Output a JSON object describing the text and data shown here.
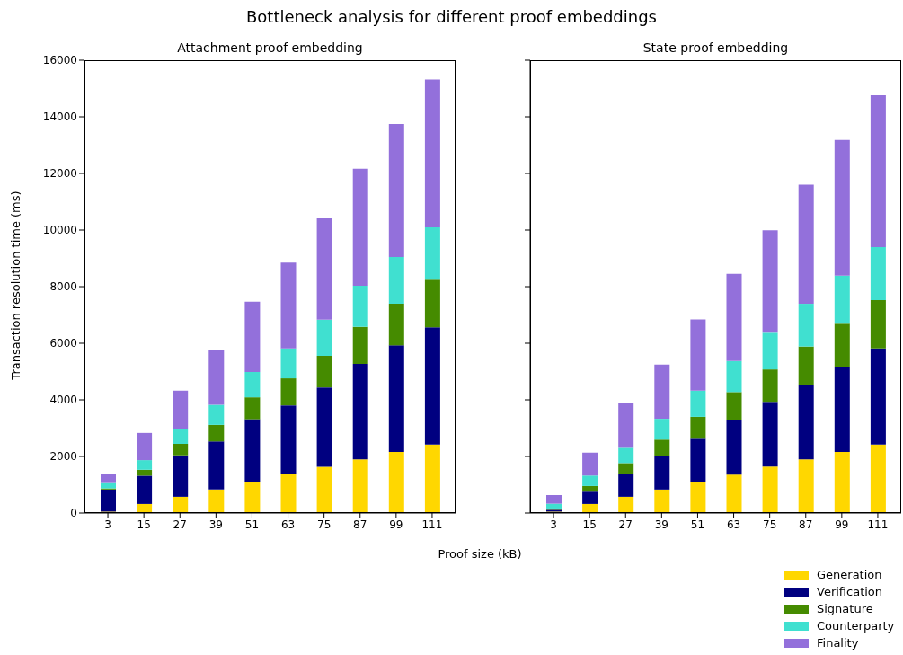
{
  "chart_data": [
    {
      "type": "bar",
      "title": "Attachment proof embedding",
      "annotations": [
        "Bottleneck analysis for different proof embeddings"
      ],
      "xlabel": "Proof size (kB)",
      "ylabel": "Transaction resolution time (ms)",
      "categories": [
        "3",
        "15",
        "27",
        "39",
        "51",
        "63",
        "75",
        "87",
        "99",
        "111"
      ],
      "stacked": true,
      "ylim": [
        0,
        16000
      ],
      "yticks": [
        0,
        2000,
        4000,
        6000,
        8000,
        10000,
        12000,
        14000,
        16000
      ],
      "legend": "bottom right",
      "series": [
        {
          "name": "Generation",
          "color": "#ffd700",
          "values": [
            50,
            320,
            575,
            830,
            1115,
            1380,
            1635,
            1900,
            2155,
            2420
          ]
        },
        {
          "name": "Verification",
          "color": "#000080",
          "values": [
            780,
            1000,
            1465,
            1700,
            2200,
            2425,
            2805,
            3370,
            3770,
            4145
          ]
        },
        {
          "name": "Signature",
          "color": "#458b00",
          "values": [
            40,
            210,
            405,
            585,
            775,
            955,
            1115,
            1310,
            1475,
            1680
          ]
        },
        {
          "name": "Counterparty",
          "color": "#40e0d0",
          "values": [
            190,
            340,
            530,
            710,
            895,
            1060,
            1275,
            1455,
            1650,
            1850
          ]
        },
        {
          "name": "Finality",
          "color": "#9370db",
          "values": [
            320,
            960,
            1350,
            1945,
            2485,
            3030,
            3580,
            4135,
            4695,
            5225
          ]
        }
      ]
    },
    {
      "type": "bar",
      "title": "State proof embedding",
      "categories": [
        "3",
        "15",
        "27",
        "39",
        "51",
        "63",
        "75",
        "87",
        "99",
        "111"
      ],
      "stacked": true,
      "ylim": [
        0,
        16000
      ],
      "yticks": [
        0,
        2000,
        4000,
        6000,
        8000,
        10000,
        12000,
        14000,
        16000
      ],
      "tick_labels": "x",
      "series": [
        {
          "color": "#ffd700",
          "values": [
            50,
            320,
            575,
            830,
            1100,
            1360,
            1645,
            1900,
            2155,
            2420
          ]
        },
        {
          "color": "#000080",
          "values": [
            65,
            435,
            805,
            1190,
            1525,
            1935,
            2285,
            2635,
            3005,
            3400
          ]
        },
        {
          "color": "#458b00",
          "values": [
            45,
            200,
            385,
            575,
            775,
            980,
            1145,
            1350,
            1530,
            1700
          ]
        },
        {
          "color": "#40e0d0",
          "values": [
            170,
            370,
            540,
            735,
            925,
            1095,
            1295,
            1510,
            1700,
            1880
          ]
        },
        {
          "color": "#9370db",
          "values": [
            305,
            810,
            1595,
            1920,
            2520,
            3080,
            3620,
            4205,
            4790,
            5365
          ]
        }
      ]
    }
  ]
}
